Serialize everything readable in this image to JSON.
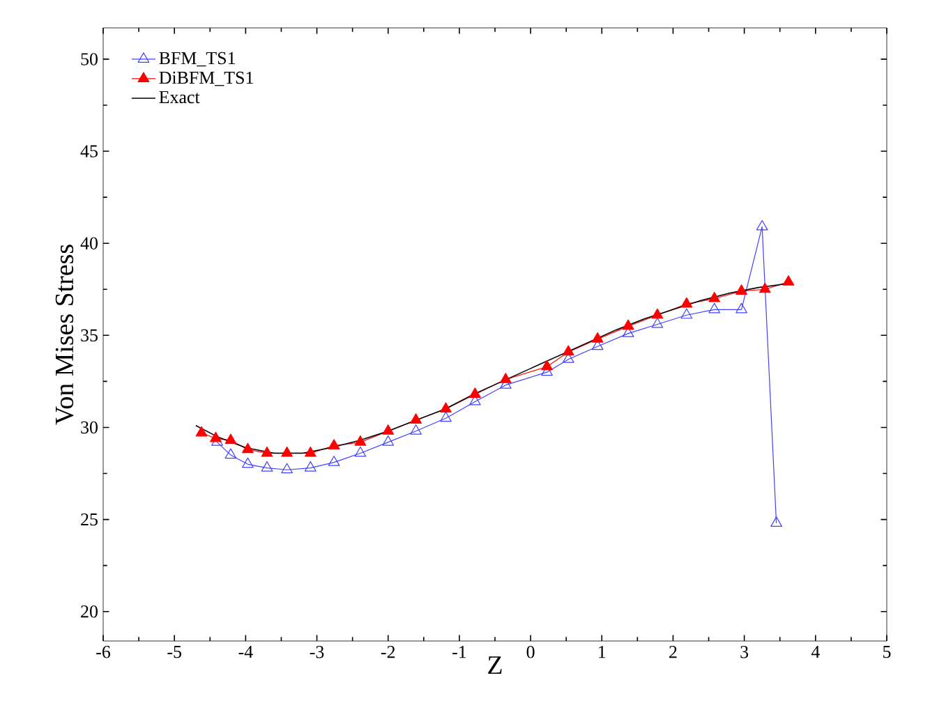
{
  "chart_data": {
    "type": "line",
    "xlabel": "Z",
    "ylabel": "Von Mises Stress",
    "xlim": [
      -6,
      5
    ],
    "ylim": [
      18.4,
      51.7
    ],
    "xticks": [
      -6,
      -5,
      -4,
      -3,
      -2,
      -1,
      0,
      1,
      2,
      3,
      4,
      5
    ],
    "yticks": [
      20,
      25,
      30,
      35,
      40,
      45,
      50
    ],
    "grid": false,
    "legend": "top left",
    "series": [
      {
        "name": "BFM_TS1",
        "color": "#4040ff",
        "marker": "triangle",
        "x": [
          -4.4,
          -4.21,
          -3.97,
          -3.7,
          -3.42,
          -3.09,
          -2.76,
          -2.39,
          -2.0,
          -1.61,
          -1.19,
          -0.78,
          -0.35,
          0.23,
          0.53,
          0.94,
          1.37,
          1.78,
          2.19,
          2.58,
          2.96,
          3.25,
          3.45
        ],
        "values": [
          29.2,
          28.5,
          28.0,
          27.8,
          27.7,
          27.8,
          28.1,
          28.6,
          29.2,
          29.8,
          30.5,
          31.4,
          32.3,
          33.0,
          33.7,
          34.4,
          35.1,
          35.6,
          36.1,
          36.4,
          36.4,
          40.9,
          24.8
        ]
      },
      {
        "name": "DiBFM_TS1",
        "color": "#ff0000",
        "marker": "triangle",
        "x": [
          -4.62,
          -4.42,
          -4.21,
          -3.97,
          -3.7,
          -3.42,
          -3.09,
          -2.76,
          -2.39,
          -2.0,
          -1.61,
          -1.19,
          -0.78,
          -0.35,
          0.23,
          0.53,
          0.94,
          1.37,
          1.78,
          2.19,
          2.58,
          2.96,
          3.29,
          3.62
        ],
        "values": [
          29.7,
          29.4,
          29.3,
          28.8,
          28.6,
          28.6,
          28.6,
          29.0,
          29.2,
          29.8,
          30.4,
          31.0,
          31.8,
          32.6,
          33.3,
          34.1,
          34.8,
          35.5,
          36.1,
          36.7,
          37.0,
          37.4,
          37.5,
          37.9
        ]
      },
      {
        "name": "Exact",
        "color": "#000000",
        "marker": "none",
        "x": [
          -4.7,
          -4.4,
          -4.0,
          -3.6,
          -3.2,
          -2.8,
          -2.4,
          -2.0,
          -1.6,
          -1.2,
          -0.8,
          -0.4,
          0.0,
          0.4,
          0.8,
          1.2,
          1.6,
          2.0,
          2.4,
          2.8,
          3.2,
          3.6
        ],
        "values": [
          30.1,
          29.5,
          28.9,
          28.6,
          28.6,
          28.9,
          29.3,
          29.8,
          30.4,
          31.0,
          31.8,
          32.5,
          33.2,
          33.9,
          34.6,
          35.3,
          35.9,
          36.4,
          36.9,
          37.3,
          37.6,
          37.8
        ]
      }
    ]
  }
}
